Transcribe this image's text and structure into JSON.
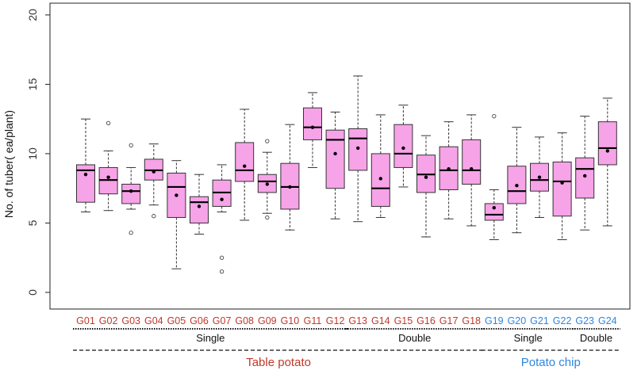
{
  "chart_data": {
    "type": "box",
    "ylabel": "No. of  tuber( ea/plant)",
    "ylim": [
      0,
      20
    ],
    "yticks": [
      0,
      5,
      10,
      15,
      20
    ],
    "categories": [
      "G01",
      "G02",
      "G03",
      "G04",
      "G05",
      "G06",
      "G07",
      "G08",
      "G09",
      "G10",
      "G11",
      "G12",
      "G13",
      "G14",
      "G15",
      "G16",
      "G17",
      "G18",
      "G19",
      "G20",
      "G21",
      "G22",
      "G23",
      "G24"
    ],
    "boxes": [
      {
        "whisker_low": 5.8,
        "q1": 6.5,
        "median": 8.8,
        "q3": 9.2,
        "whisker_high": 12.5,
        "mean": 8.5,
        "outliers": []
      },
      {
        "whisker_low": 5.9,
        "q1": 7.1,
        "median": 8.1,
        "q3": 9.0,
        "whisker_high": 10.2,
        "mean": 8.3,
        "outliers": [
          12.2
        ]
      },
      {
        "whisker_low": 6.0,
        "q1": 6.4,
        "median": 7.3,
        "q3": 7.8,
        "whisker_high": 9.0,
        "mean": 7.3,
        "outliers": [
          10.6,
          4.3
        ]
      },
      {
        "whisker_low": 6.3,
        "q1": 8.1,
        "median": 8.8,
        "q3": 9.6,
        "whisker_high": 10.7,
        "mean": 8.7,
        "outliers": [
          5.5
        ]
      },
      {
        "whisker_low": 1.7,
        "q1": 5.4,
        "median": 7.6,
        "q3": 8.6,
        "whisker_high": 9.5,
        "mean": 7.0,
        "outliers": []
      },
      {
        "whisker_low": 4.2,
        "q1": 5.0,
        "median": 6.5,
        "q3": 6.9,
        "whisker_high": 8.5,
        "mean": 6.2,
        "outliers": []
      },
      {
        "whisker_low": 5.8,
        "q1": 6.2,
        "median": 7.2,
        "q3": 8.1,
        "whisker_high": 9.2,
        "mean": 6.7,
        "outliers": [
          2.5,
          1.5
        ]
      },
      {
        "whisker_low": 5.2,
        "q1": 8.0,
        "median": 8.8,
        "q3": 10.8,
        "whisker_high": 13.2,
        "mean": 9.1,
        "outliers": []
      },
      {
        "whisker_low": 5.7,
        "q1": 7.2,
        "median": 8.0,
        "q3": 8.5,
        "whisker_high": 10.1,
        "mean": 7.8,
        "outliers": [
          10.9,
          5.4
        ]
      },
      {
        "whisker_low": 4.5,
        "q1": 6.0,
        "median": 7.6,
        "q3": 9.3,
        "whisker_high": 12.1,
        "mean": 7.6,
        "outliers": []
      },
      {
        "whisker_low": 9.0,
        "q1": 11.0,
        "median": 11.9,
        "q3": 13.3,
        "whisker_high": 14.4,
        "mean": 11.9,
        "outliers": []
      },
      {
        "whisker_low": 5.3,
        "q1": 7.5,
        "median": 11.0,
        "q3": 11.7,
        "whisker_high": 13.0,
        "mean": 10.0,
        "outliers": []
      },
      {
        "whisker_low": 5.1,
        "q1": 8.8,
        "median": 11.1,
        "q3": 11.8,
        "whisker_high": 15.6,
        "mean": 10.4,
        "outliers": []
      },
      {
        "whisker_low": 5.4,
        "q1": 6.2,
        "median": 7.5,
        "q3": 10.0,
        "whisker_high": 12.8,
        "mean": 8.2,
        "outliers": []
      },
      {
        "whisker_low": 7.6,
        "q1": 9.0,
        "median": 10.0,
        "q3": 12.1,
        "whisker_high": 13.5,
        "mean": 10.4,
        "outliers": []
      },
      {
        "whisker_low": 4.0,
        "q1": 7.2,
        "median": 8.5,
        "q3": 9.9,
        "whisker_high": 11.3,
        "mean": 8.3,
        "outliers": []
      },
      {
        "whisker_low": 5.3,
        "q1": 7.4,
        "median": 8.8,
        "q3": 10.5,
        "whisker_high": 12.3,
        "mean": 8.9,
        "outliers": []
      },
      {
        "whisker_low": 4.8,
        "q1": 7.8,
        "median": 8.8,
        "q3": 11.0,
        "whisker_high": 12.8,
        "mean": 8.9,
        "outliers": []
      },
      {
        "whisker_low": 3.8,
        "q1": 5.2,
        "median": 5.6,
        "q3": 6.4,
        "whisker_high": 7.4,
        "mean": 6.1,
        "outliers": [
          12.7
        ]
      },
      {
        "whisker_low": 4.3,
        "q1": 6.4,
        "median": 7.3,
        "q3": 9.1,
        "whisker_high": 11.9,
        "mean": 7.7,
        "outliers": []
      },
      {
        "whisker_low": 5.4,
        "q1": 7.3,
        "median": 8.1,
        "q3": 9.3,
        "whisker_high": 11.2,
        "mean": 8.3,
        "outliers": []
      },
      {
        "whisker_low": 3.8,
        "q1": 5.5,
        "median": 8.0,
        "q3": 9.4,
        "whisker_high": 11.5,
        "mean": 7.9,
        "outliers": []
      },
      {
        "whisker_low": 4.5,
        "q1": 6.8,
        "median": 8.9,
        "q3": 9.7,
        "whisker_high": 12.7,
        "mean": 8.4,
        "outliers": []
      },
      {
        "whisker_low": 4.8,
        "q1": 9.2,
        "median": 10.4,
        "q3": 12.3,
        "whisker_high": 14.0,
        "mean": 10.2,
        "outliers": []
      }
    ],
    "groups": [
      {
        "label": "Single",
        "from": "G01",
        "to": "G12",
        "level": "inner"
      },
      {
        "label": "Double",
        "from": "G13",
        "to": "G18",
        "level": "inner"
      },
      {
        "label": "Single",
        "from": "G19",
        "to": "G22",
        "level": "inner"
      },
      {
        "label": "Double",
        "from": "G23",
        "to": "G24",
        "level": "inner"
      },
      {
        "label": "Table potato",
        "from": "G01",
        "to": "G18",
        "level": "outer",
        "color": "#c0392b"
      },
      {
        "label": "Potato chip",
        "from": "G19",
        "to": "G24",
        "level": "outer",
        "color": "#2e86de"
      }
    ],
    "category_colors": {
      "table_potato": "#c0392b",
      "potato_chip": "#2e86de"
    },
    "box_fill": "#f7a3e8",
    "grid": false
  }
}
